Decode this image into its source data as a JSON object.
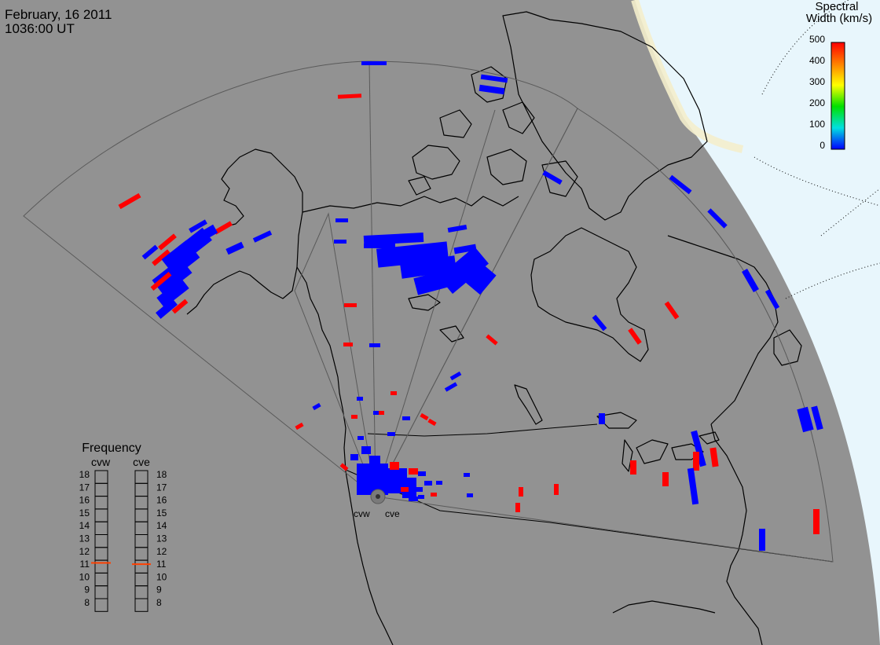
{
  "header": {
    "date": "February, 16 2011",
    "time": "1036:00 UT"
  },
  "colorbar": {
    "title_line1": "Spectral",
    "title_line2": "Width (km/s)",
    "ticks": [
      "500",
      "400",
      "300",
      "200",
      "100",
      "0"
    ],
    "colors": [
      "#ff0000",
      "#ff8000",
      "#ffff00",
      "#00e000",
      "#00e0e0",
      "#0000ff"
    ]
  },
  "radars": {
    "west": "cvw",
    "east": "cve"
  },
  "frequency": {
    "title": "Frequency",
    "scale_labels": [
      "18",
      "17",
      "16",
      "15",
      "14",
      "13",
      "12",
      "11",
      "10",
      "9",
      "8"
    ],
    "cvw_mhz": 10.8,
    "cve_mhz": 10.7
  },
  "map_colors": {
    "background": "#929292",
    "twilight": "#e8f6fc",
    "coast": "#000000",
    "positive": "#ff0000",
    "negative": "#0000ff"
  }
}
